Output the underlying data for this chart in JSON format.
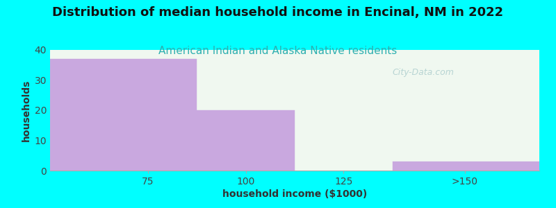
{
  "title": "Distribution of median household income in Encinal, NM in 2022",
  "subtitle": "American Indian and Alaska Native residents",
  "xlabel": "household income ($1000)",
  "ylabel": "households",
  "background_color": "#00FFFF",
  "plot_bg_top": "#f5fff5",
  "plot_bg_bottom": "#eaf5ea",
  "bar_color": "#C9A8DF",
  "subtitle_color": "#2db0b0",
  "title_color": "#111111",
  "categories": [
    "75",
    "100",
    "125",
    ">150"
  ],
  "values": [
    37,
    20,
    0,
    3
  ],
  "ylim": [
    0,
    40
  ],
  "yticks": [
    0,
    10,
    20,
    30,
    40
  ],
  "watermark": "City-Data.com",
  "title_fontsize": 13,
  "subtitle_fontsize": 11,
  "axis_label_fontsize": 10,
  "tick_fontsize": 10,
  "bar_lefts": [
    50,
    87.5,
    112.5,
    137.5
  ],
  "bar_rights": [
    87.5,
    112.5,
    137.5,
    175
  ],
  "xlim": [
    50,
    175
  ],
  "xtick_positions": [
    75,
    100,
    125,
    156
  ],
  "xtick_labels": [
    "75",
    "100",
    "125",
    ">150"
  ]
}
